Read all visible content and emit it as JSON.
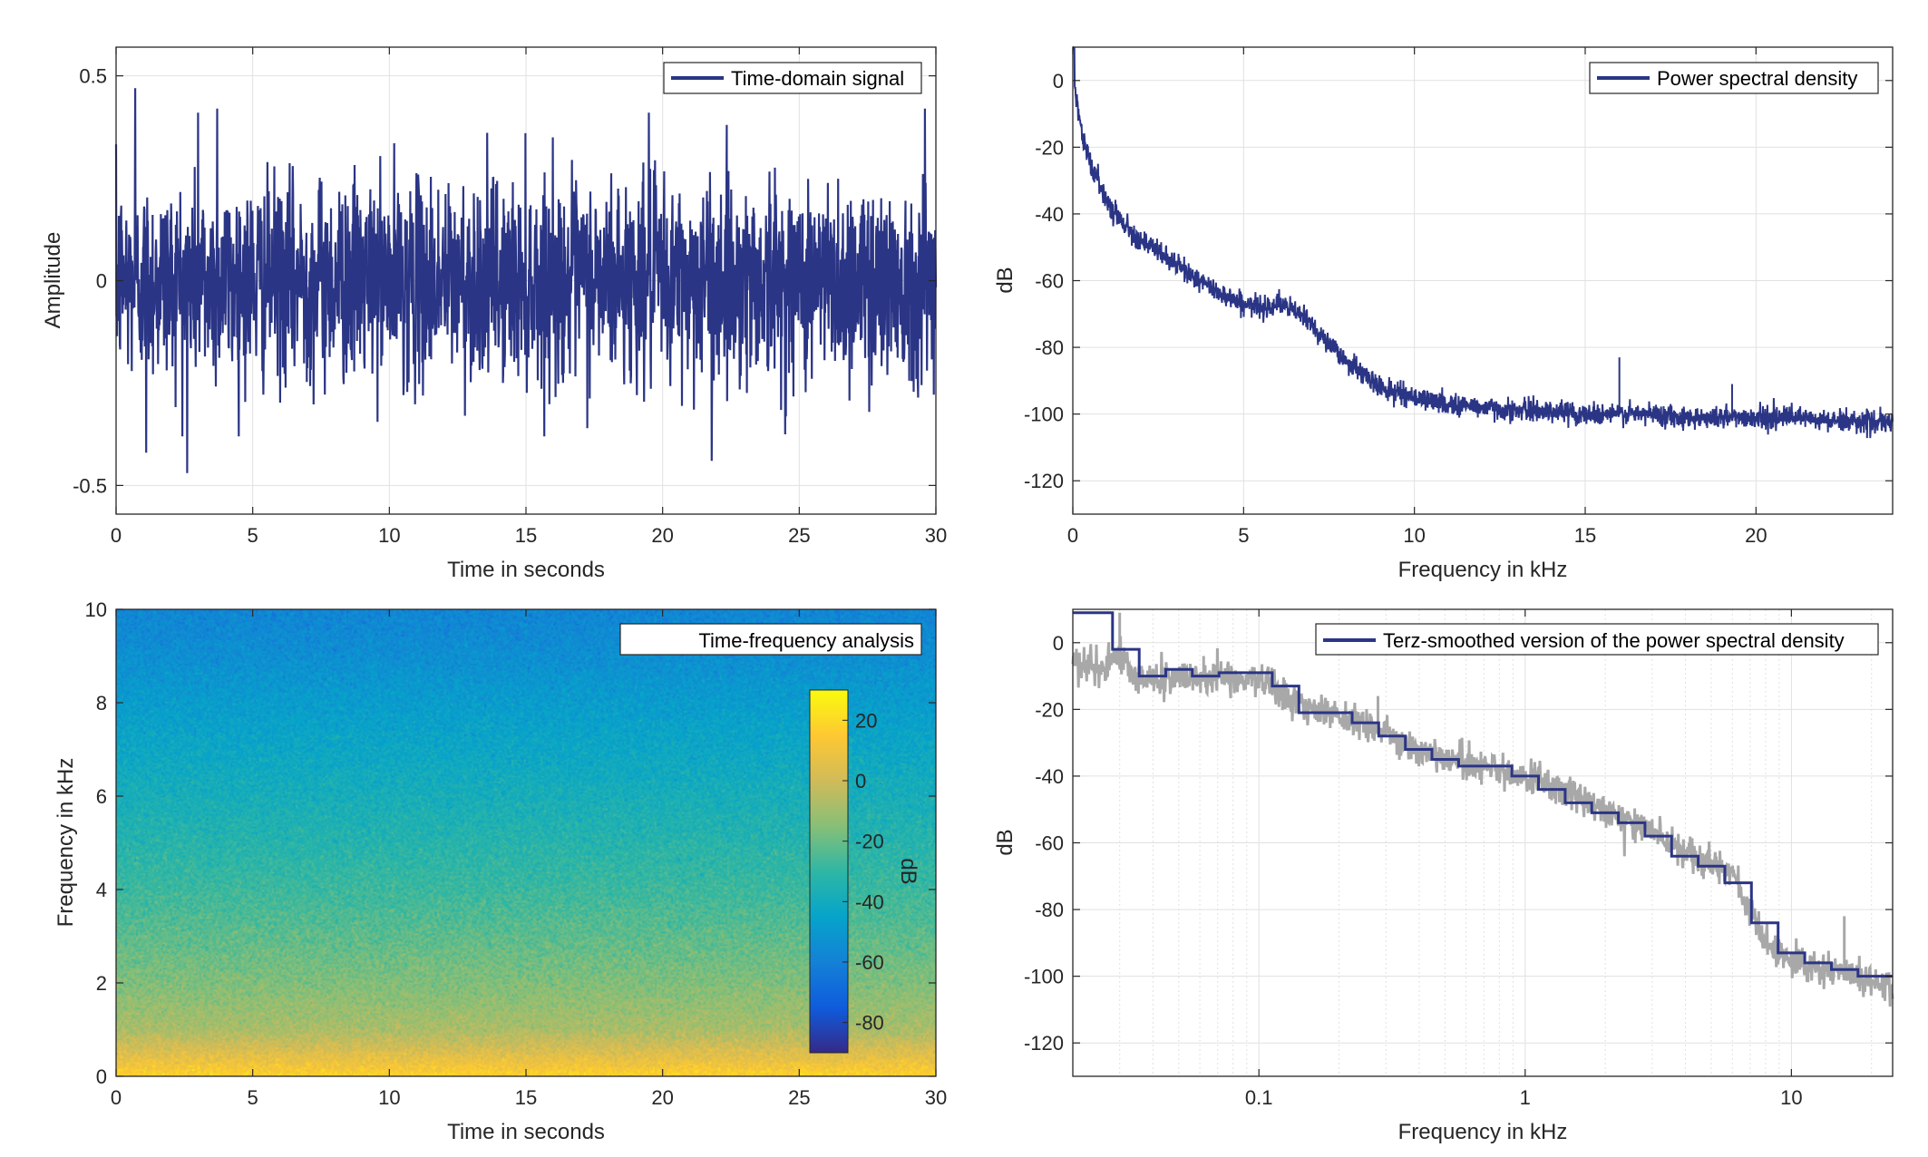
{
  "figure": {
    "colors": {
      "line": "#2b3585",
      "gray_line": "#a8a8a8",
      "grid": "#e1e1e1",
      "axes": "#262626"
    },
    "chart_data": [
      {
        "id": "time-domain",
        "type": "line",
        "legend": "Time-domain signal",
        "legend_position": "top-right",
        "xlabel": "Time in seconds",
        "ylabel": "Amplitude",
        "xlim": [
          0,
          30
        ],
        "ylim": [
          -0.57,
          0.57
        ],
        "xticks": [
          0,
          5,
          10,
          15,
          20,
          25,
          30
        ],
        "xtick_labels": [
          "0",
          "5",
          "10",
          "15",
          "20",
          "25",
          "30"
        ],
        "yticks": [
          -0.5,
          0,
          0.5
        ],
        "ytick_labels": [
          "-0.5",
          "0",
          "0.5"
        ],
        "grid": true,
        "signal": {
          "kind": "noise",
          "typical_range": [
            -0.3,
            0.3
          ],
          "max": 0.47,
          "min": -0.47,
          "peaks": [
            {
              "x": 0.7,
              "y": 0.47
            },
            {
              "x": 3.0,
              "y": 0.41
            },
            {
              "x": 3.7,
              "y": 0.42
            },
            {
              "x": 2.6,
              "y": -0.47
            },
            {
              "x": 1.1,
              "y": -0.42
            },
            {
              "x": 21.8,
              "y": -0.44
            },
            {
              "x": 19.5,
              "y": 0.41
            },
            {
              "x": 29.6,
              "y": 0.42
            }
          ]
        }
      },
      {
        "id": "psd",
        "type": "line",
        "legend": "Power spectral density",
        "legend_position": "top-right",
        "xlabel": "Frequency in kHz",
        "ylabel": "dB",
        "xlim": [
          0,
          24
        ],
        "ylim": [
          -130,
          10
        ],
        "xticks": [
          0,
          5,
          10,
          15,
          20
        ],
        "xtick_labels": [
          "0",
          "5",
          "10",
          "15",
          "20"
        ],
        "yticks": [
          0,
          -20,
          -40,
          -60,
          -80,
          -100,
          -120
        ],
        "ytick_labels": [
          "0",
          "-20",
          "-40",
          "-60",
          "-80",
          "-100",
          "-120"
        ],
        "grid": true,
        "x": [
          0,
          0.3,
          0.6,
          1,
          1.5,
          2,
          3,
          4,
          5,
          5.5,
          6,
          6.5,
          7,
          7.5,
          8,
          8.5,
          9,
          10,
          11,
          12,
          13,
          14,
          15,
          16,
          17,
          18,
          19,
          20,
          21,
          22,
          23,
          24
        ],
        "y": [
          2,
          -18,
          -27,
          -36,
          -43,
          -48,
          -55,
          -62,
          -67,
          -68,
          -67,
          -69,
          -73,
          -79,
          -84,
          -88,
          -92,
          -95,
          -97,
          -98,
          -99,
          -99,
          -100,
          -100,
          -100,
          -101,
          -101,
          -101,
          -101,
          -102,
          -102,
          -103
        ],
        "spikes": [
          {
            "x": 16.0,
            "y": -83
          },
          {
            "x": 19.3,
            "y": -91
          }
        ]
      },
      {
        "id": "spectrogram",
        "type": "heatmap",
        "legend": "Time-frequency analysis",
        "legend_position": "top-right",
        "xlabel": "Time in seconds",
        "ylabel": "Frequency in kHz",
        "xlim": [
          0,
          30
        ],
        "ylim": [
          0,
          10
        ],
        "xticks": [
          0,
          5,
          10,
          15,
          20,
          25,
          30
        ],
        "xtick_labels": [
          "0",
          "5",
          "10",
          "15",
          "20",
          "25",
          "30"
        ],
        "yticks": [
          0,
          2,
          4,
          6,
          8,
          10
        ],
        "ytick_labels": [
          "0",
          "2",
          "4",
          "6",
          "8",
          "10"
        ],
        "grid": false,
        "colorbar": {
          "label": "dB",
          "clim": [
            -90,
            30
          ],
          "ticks": [
            20,
            0,
            -20,
            -40,
            -60,
            -80
          ],
          "tick_labels": [
            "20",
            "0",
            "-20",
            "-40",
            "-60",
            "-80"
          ],
          "colormap": "parula"
        },
        "frequency_profile": {
          "freq_khz": [
            0,
            0.2,
            0.5,
            1,
            2,
            3,
            4,
            5,
            6,
            7,
            8,
            9,
            10
          ],
          "level_db": [
            18,
            12,
            4,
            -8,
            -16,
            -22,
            -28,
            -33,
            -38,
            -43,
            -48,
            -54,
            -58
          ]
        }
      },
      {
        "id": "terz-smoothed",
        "type": "line",
        "legend": "Terz-smoothed version of the power spectral density",
        "legend_position": "top-right",
        "xlabel": "Frequency in kHz",
        "ylabel": "dB",
        "xscale": "log",
        "xlim": [
          0.02,
          24
        ],
        "ylim": [
          -130,
          10
        ],
        "xticks": [
          0.1,
          1,
          10
        ],
        "xtick_labels": [
          "0.1",
          "1",
          "10"
        ],
        "yticks": [
          0,
          -20,
          -40,
          -60,
          -80,
          -100,
          -120
        ],
        "ytick_labels": [
          "0",
          "-20",
          "-40",
          "-60",
          "-80",
          "-100",
          "-120"
        ],
        "grid": true,
        "series": [
          {
            "role": "smoothed",
            "color": "#2b3585",
            "steps": [
              {
                "x0": 0.02,
                "x1": 0.0282,
                "y": 9
              },
              {
                "x0": 0.0282,
                "x1": 0.0355,
                "y": -2
              },
              {
                "x0": 0.0355,
                "x1": 0.0447,
                "y": -10
              },
              {
                "x0": 0.0447,
                "x1": 0.0562,
                "y": -8
              },
              {
                "x0": 0.0562,
                "x1": 0.0708,
                "y": -10
              },
              {
                "x0": 0.0708,
                "x1": 0.0891,
                "y": -9
              },
              {
                "x0": 0.0891,
                "x1": 0.1122,
                "y": -9
              },
              {
                "x0": 0.1122,
                "x1": 0.1413,
                "y": -13
              },
              {
                "x0": 0.1413,
                "x1": 0.1778,
                "y": -21
              },
              {
                "x0": 0.1778,
                "x1": 0.2239,
                "y": -21
              },
              {
                "x0": 0.2239,
                "x1": 0.2818,
                "y": -24
              },
              {
                "x0": 0.2818,
                "x1": 0.3548,
                "y": -28
              },
              {
                "x0": 0.3548,
                "x1": 0.4467,
                "y": -32
              },
              {
                "x0": 0.4467,
                "x1": 0.5623,
                "y": -35
              },
              {
                "x0": 0.5623,
                "x1": 0.7079,
                "y": -37
              },
              {
                "x0": 0.7079,
                "x1": 0.8913,
                "y": -37
              },
              {
                "x0": 0.8913,
                "x1": 1.122,
                "y": -40
              },
              {
                "x0": 1.122,
                "x1": 1.413,
                "y": -44
              },
              {
                "x0": 1.413,
                "x1": 1.778,
                "y": -48
              },
              {
                "x0": 1.778,
                "x1": 2.239,
                "y": -51
              },
              {
                "x0": 2.239,
                "x1": 2.818,
                "y": -54
              },
              {
                "x0": 2.818,
                "x1": 3.548,
                "y": -58
              },
              {
                "x0": 3.548,
                "x1": 4.467,
                "y": -64
              },
              {
                "x0": 4.467,
                "x1": 5.623,
                "y": -67
              },
              {
                "x0": 5.623,
                "x1": 7.079,
                "y": -72
              },
              {
                "x0": 7.079,
                "x1": 8.913,
                "y": -84
              },
              {
                "x0": 8.913,
                "x1": 11.22,
                "y": -93
              },
              {
                "x0": 11.22,
                "x1": 14.13,
                "y": -96
              },
              {
                "x0": 14.13,
                "x1": 17.78,
                "y": -98
              },
              {
                "x0": 17.78,
                "x1": 24,
                "y": -100
              }
            ]
          },
          {
            "role": "raw",
            "color": "#a8a8a8",
            "x": [
              0.02,
              0.025,
              0.03,
              0.035,
              0.045,
              0.06,
              0.08,
              0.1,
              0.13,
              0.17,
              0.22,
              0.3,
              0.4,
              0.5,
              0.7,
              1,
              1.5,
              2,
              3,
              4,
              5,
              6,
              7,
              8,
              9,
              10,
              12,
              15,
              18,
              24
            ],
            "y": [
              -6,
              -8,
              -4,
              -11,
              -11,
              -11,
              -11,
              -11,
              -17,
              -21,
              -23,
              -27,
              -32,
              -35,
              -37,
              -40,
              -45,
              -51,
              -56,
              -63,
              -67,
              -70,
              -80,
              -90,
              -94,
              -95,
              -98,
              -99,
              -100,
              -104
            ],
            "spikes": [
              {
                "x": 0.03,
                "y": 9
              },
              {
                "x": 0.28,
                "y": -16
              },
              {
                "x": 0.062,
                "y": -4
              },
              {
                "x": 15.8,
                "y": -82
              }
            ]
          }
        ]
      }
    ]
  }
}
